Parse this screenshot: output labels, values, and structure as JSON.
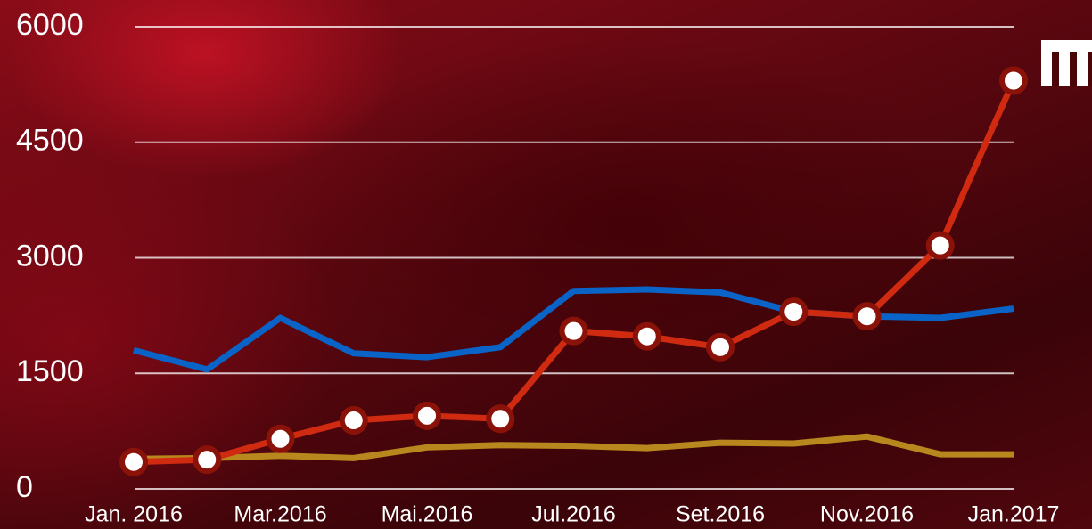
{
  "chart_data": {
    "type": "line",
    "categories": [
      "Jan. 2016",
      null,
      "Mar.2016",
      null,
      "Mai.2016",
      null,
      "Jul.2016",
      null,
      "Set.2016",
      null,
      "Nov.2016",
      null,
      "Jan.2017"
    ],
    "series": [
      {
        "color": "#0a64c8",
        "values": [
          1800,
          1550,
          2220,
          1760,
          1710,
          1840,
          2570,
          2590,
          2550,
          2300,
          2240,
          2220,
          2340
        ]
      },
      {
        "color": "#b8881e",
        "values": [
          390,
          400,
          430,
          400,
          540,
          570,
          560,
          530,
          600,
          590,
          680,
          450,
          450
        ]
      },
      {
        "color": "#d02a10",
        "marker": true,
        "values": [
          350,
          380,
          650,
          890,
          950,
          910,
          2050,
          1980,
          1840,
          2300,
          2240,
          3160,
          5300
        ]
      }
    ],
    "ylim": [
      0,
      6000
    ],
    "yticks": [
      0,
      1500,
      3000,
      4500,
      6000
    ],
    "grid": true
  }
}
